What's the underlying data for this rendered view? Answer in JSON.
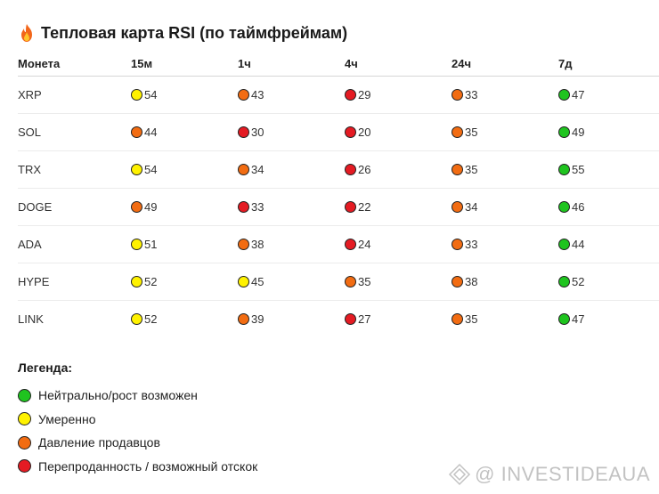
{
  "title": {
    "icon": "fire-icon",
    "text": "Тепловая карта RSI (по таймфреймам)"
  },
  "table": {
    "headers": [
      "Монета",
      "15м",
      "1ч",
      "4ч",
      "24ч",
      "7д"
    ],
    "rows": [
      {
        "coin": "XRP",
        "cells": [
          {
            "value": "54",
            "level": "yellow"
          },
          {
            "value": "43",
            "level": "orange"
          },
          {
            "value": "29",
            "level": "red"
          },
          {
            "value": "33",
            "level": "orange"
          },
          {
            "value": "47",
            "level": "green"
          }
        ]
      },
      {
        "coin": "SOL",
        "cells": [
          {
            "value": "44",
            "level": "orange"
          },
          {
            "value": "30",
            "level": "red"
          },
          {
            "value": "20",
            "level": "red"
          },
          {
            "value": "35",
            "level": "orange"
          },
          {
            "value": "49",
            "level": "green"
          }
        ]
      },
      {
        "coin": "TRX",
        "cells": [
          {
            "value": "54",
            "level": "yellow"
          },
          {
            "value": "34",
            "level": "orange"
          },
          {
            "value": "26",
            "level": "red"
          },
          {
            "value": "35",
            "level": "orange"
          },
          {
            "value": "55",
            "level": "green"
          }
        ]
      },
      {
        "coin": "DOGE",
        "cells": [
          {
            "value": "49",
            "level": "orange"
          },
          {
            "value": "33",
            "level": "red"
          },
          {
            "value": "22",
            "level": "red"
          },
          {
            "value": "34",
            "level": "orange"
          },
          {
            "value": "46",
            "level": "green"
          }
        ]
      },
      {
        "coin": "ADA",
        "cells": [
          {
            "value": "51",
            "level": "yellow"
          },
          {
            "value": "38",
            "level": "orange"
          },
          {
            "value": "24",
            "level": "red"
          },
          {
            "value": "33",
            "level": "orange"
          },
          {
            "value": "44",
            "level": "green"
          }
        ]
      },
      {
        "coin": "HYPE",
        "cells": [
          {
            "value": "52",
            "level": "yellow"
          },
          {
            "value": "45",
            "level": "yellow"
          },
          {
            "value": "35",
            "level": "orange"
          },
          {
            "value": "38",
            "level": "orange"
          },
          {
            "value": "52",
            "level": "green"
          }
        ]
      },
      {
        "coin": "LINK",
        "cells": [
          {
            "value": "52",
            "level": "yellow"
          },
          {
            "value": "39",
            "level": "orange"
          },
          {
            "value": "27",
            "level": "red"
          },
          {
            "value": "35",
            "level": "orange"
          },
          {
            "value": "47",
            "level": "green"
          }
        ]
      }
    ]
  },
  "colors": {
    "green": "#1fc41f",
    "yellow": "#fff200",
    "orange": "#f26c12",
    "red": "#e41b23"
  },
  "legend": {
    "title": "Легенда:",
    "items": [
      {
        "level": "green",
        "label": "Нейтрально/рост возможен"
      },
      {
        "level": "yellow",
        "label": "Умеренно"
      },
      {
        "level": "orange",
        "label": "Давление продавцов"
      },
      {
        "level": "red",
        "label": "Перепроданность / возможный отскок"
      }
    ]
  },
  "watermark": {
    "text": "@ INVESTIDEAUA",
    "icon": "diamond-logo-icon"
  }
}
